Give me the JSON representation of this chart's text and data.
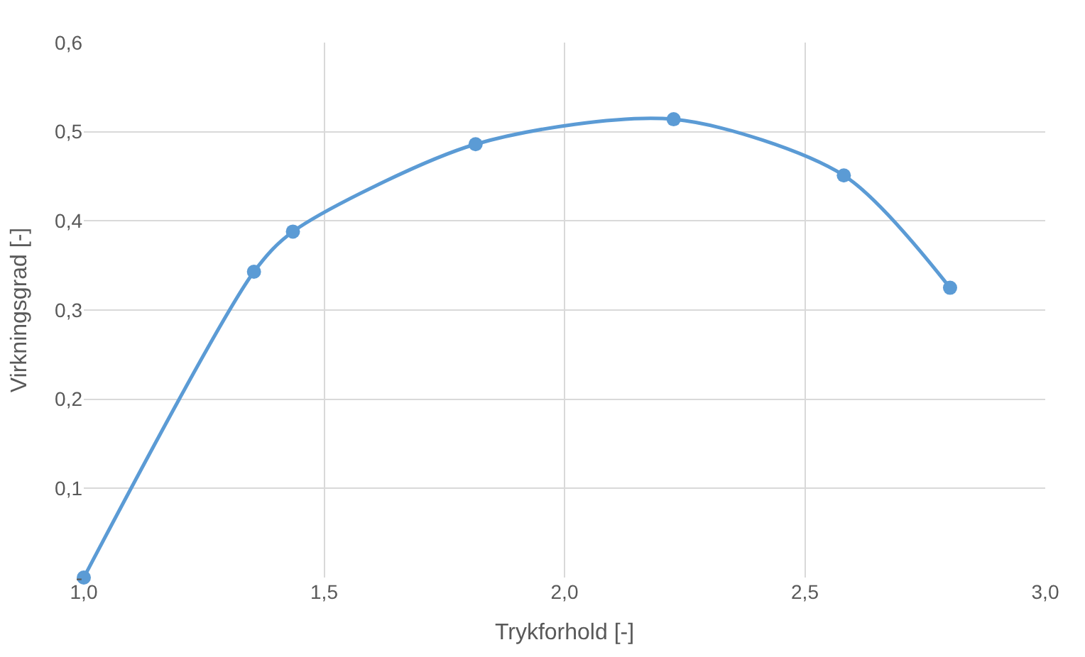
{
  "chart_data": {
    "type": "line",
    "xlabel": "Trykforhold [-]",
    "ylabel": "Virkningsgrad [-]",
    "x": [
      1.0,
      1.354,
      1.435,
      1.815,
      2.227,
      2.581,
      2.802
    ],
    "series": [
      {
        "color": "#5b9bd5",
        "values": [
          0.0,
          0.343,
          0.388,
          0.486,
          0.514,
          0.451,
          0.325
        ]
      }
    ],
    "xlim": [
      1.0,
      3.0
    ],
    "xticks": [
      {
        "value": 1.0,
        "label": "1,0"
      },
      {
        "value": 1.5,
        "label": "1,5"
      },
      {
        "value": 2.0,
        "label": "2,0"
      },
      {
        "value": 2.5,
        "label": "2,5"
      },
      {
        "value": 3.0,
        "label": "3,0"
      }
    ],
    "ylim": [
      0,
      0.6
    ],
    "yticks": [
      {
        "value": 0,
        "label": "-"
      },
      {
        "value": 0.1,
        "label": "0,1"
      },
      {
        "value": 0.2,
        "label": "0,2"
      },
      {
        "value": 0.3,
        "label": "0,3"
      },
      {
        "value": 0.4,
        "label": "0,4"
      },
      {
        "value": 0.5,
        "label": "0,5"
      },
      {
        "value": 0.6,
        "label": "0,6"
      }
    ],
    "grid": true,
    "marker": "circle",
    "line_style": "solid"
  }
}
